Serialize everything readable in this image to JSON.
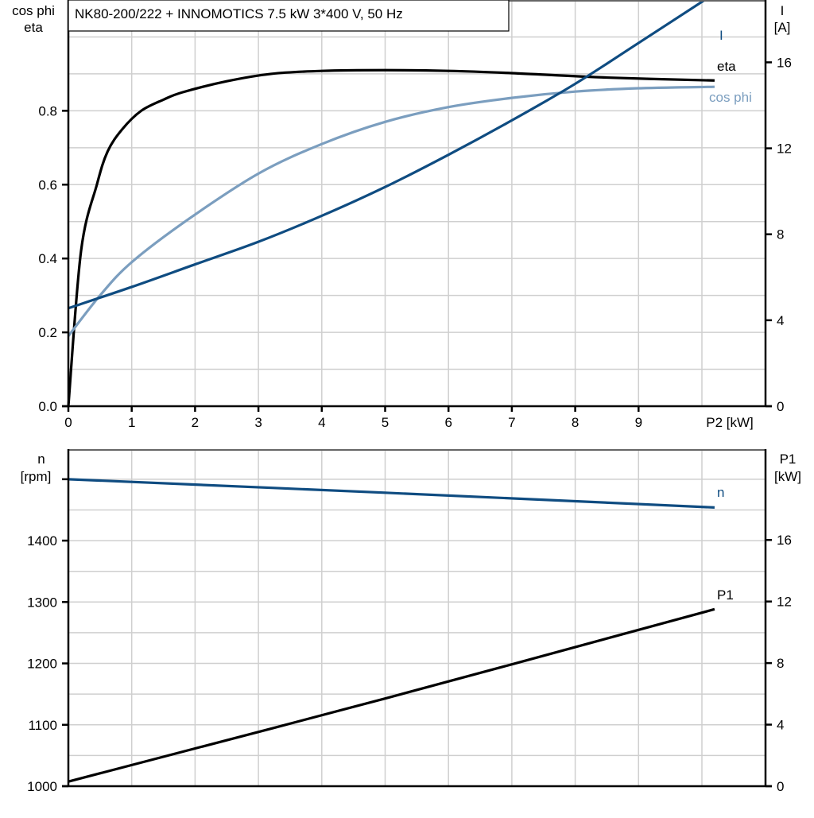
{
  "title": "NK80-200/222 + INNOMOTICS   7.5 kW   3*400 V, 50 Hz",
  "colors": {
    "I": "#0f4c81",
    "n": "#0f4c81",
    "cos_phi": "#7b9ebf",
    "eta": "#000000",
    "P1": "#000000",
    "grid": "#cfcfcf"
  },
  "chart_data": [
    {
      "type": "line",
      "xlabel": "P2 [kW]",
      "xlim": [
        0,
        11
      ],
      "xticks": [
        "0",
        "1",
        "2",
        "3",
        "4",
        "5",
        "6",
        "7",
        "8",
        "9"
      ],
      "ylabel_left": [
        "cos phi",
        "eta"
      ],
      "ylim_left": [
        0,
        1.1
      ],
      "yticks_left": [
        "0.0",
        "0.2",
        "0.4",
        "0.6",
        "0.8"
      ],
      "ylabel_right": [
        "I",
        "[A]"
      ],
      "ylim_right": [
        0,
        18.9
      ],
      "yticks_right": [
        "0",
        "4",
        "8",
        "12",
        "16"
      ],
      "grid": true,
      "series": [
        {
          "name": "eta",
          "axis": "left",
          "color": "#000000",
          "x": [
            0,
            0.2,
            0.45,
            0.62,
            0.85,
            1.15,
            1.5,
            1.8,
            2.5,
            3.2,
            4.0,
            5.0,
            6.0,
            7.0,
            8.5,
            10.2
          ],
          "y": [
            0,
            0.42,
            0.6,
            0.69,
            0.75,
            0.8,
            0.83,
            0.85,
            0.88,
            0.9,
            0.908,
            0.91,
            0.908,
            0.902,
            0.89,
            0.882
          ]
        },
        {
          "name": "cos phi",
          "axis": "left",
          "color": "#7b9ebf",
          "x": [
            0,
            0.5,
            1.0,
            1.9,
            3.0,
            4.0,
            5.0,
            6.0,
            7.0,
            8.0,
            9.0,
            10.2
          ],
          "y": [
            0.19,
            0.3,
            0.39,
            0.507,
            0.63,
            0.71,
            0.77,
            0.81,
            0.835,
            0.852,
            0.861,
            0.865
          ]
        },
        {
          "name": "I",
          "axis": "right",
          "color": "#0f4c81",
          "x": [
            0,
            1,
            2,
            3,
            4,
            5,
            6,
            7,
            8,
            9,
            10.2
          ],
          "y": [
            4.56,
            5.55,
            6.6,
            7.65,
            8.86,
            10.2,
            11.7,
            13.3,
            15.0,
            16.9,
            19.2
          ]
        }
      ]
    },
    {
      "type": "line",
      "xlim": [
        0,
        11
      ],
      "ylabel_left": [
        "n",
        "[rpm]"
      ],
      "ylim_left": [
        1000,
        1549
      ],
      "yticks_left": [
        "1000",
        "1100",
        "1200",
        "1300",
        "1400"
      ],
      "ylabel_right": [
        "P1",
        "[kW]"
      ],
      "ylim_right": [
        0,
        21.9
      ],
      "yticks_right": [
        "0",
        "4",
        "8",
        "12",
        "16"
      ],
      "grid": true,
      "series": [
        {
          "name": "n",
          "axis": "left",
          "color": "#0f4c81",
          "x": [
            0,
            5,
            10.2
          ],
          "y": [
            1500,
            1478,
            1454
          ]
        },
        {
          "name": "P1",
          "axis": "right",
          "color": "#000000",
          "x": [
            0,
            5,
            10.2
          ],
          "y": [
            0.3,
            5.7,
            11.5
          ]
        }
      ]
    }
  ]
}
